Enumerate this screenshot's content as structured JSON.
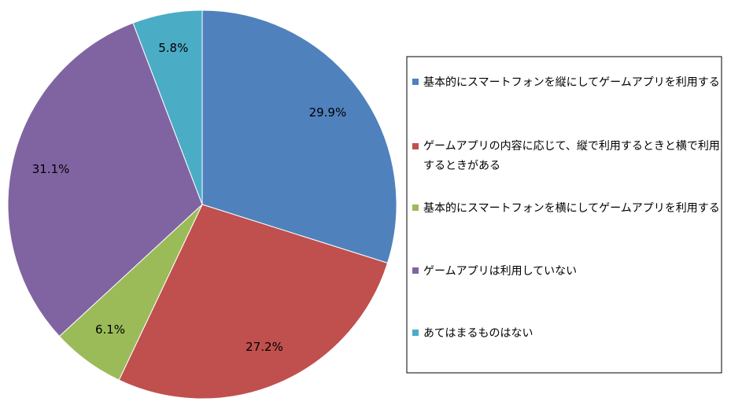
{
  "chart_data": {
    "type": "pie",
    "title": "",
    "start_angle_deg": 0,
    "direction": "clockwise",
    "legend_position": "right",
    "slices": [
      {
        "label": "基本的にスマートフォンを縦にしてゲームアプリを利用する",
        "value": 29.9,
        "display": "29.9%",
        "color": "#4F81BD"
      },
      {
        "label": "ゲームアプリの内容に応じて、縦で利用するときと横で利用するときがある",
        "value": 27.2,
        "display": "27.2%",
        "color": "#C0504D"
      },
      {
        "label": "基本的にスマートフォンを横にしてゲームアプリを利用する",
        "value": 6.1,
        "display": "6.1%",
        "color": "#9BBB59"
      },
      {
        "label": "ゲームアプリは利用していない",
        "value": 31.1,
        "display": "31.1%",
        "color": "#8064A2"
      },
      {
        "label": "あてはまるものはない",
        "value": 5.8,
        "display": "5.8%",
        "color": "#4BACC6"
      }
    ]
  }
}
